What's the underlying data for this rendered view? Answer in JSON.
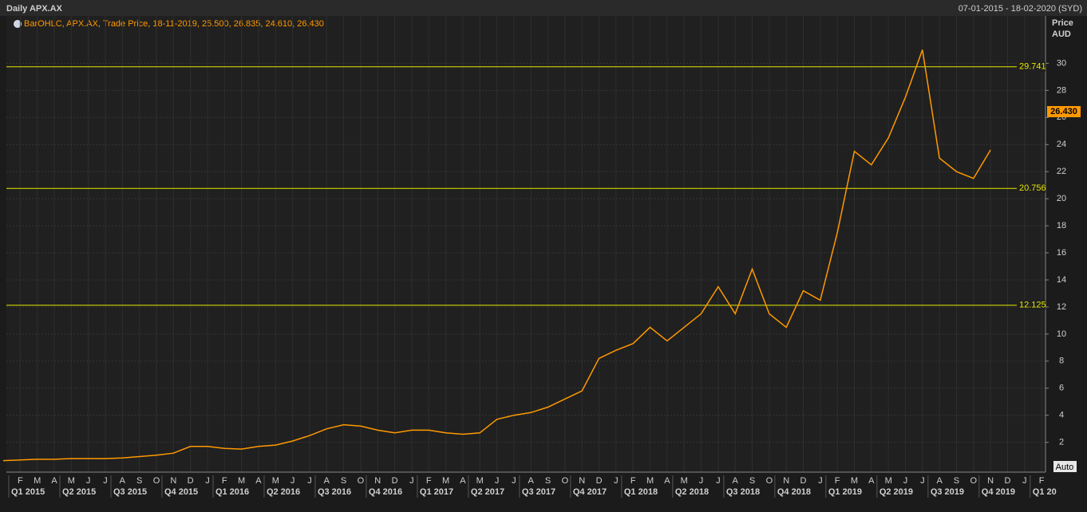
{
  "chart_data": {
    "type": "line",
    "title": "Daily APX.AX",
    "date_range": "07-01-2015 - 18-02-2020 (SYD)",
    "legend_text": "BarOHLC, APX.AX, Trade Price, 18-11-2019, 25.500, 26.835, 24.610, 26.430",
    "y_axis_title": "Price",
    "y_axis_unit": "AUD",
    "auto_button": "Auto",
    "categories": [
      null,
      "F",
      "M",
      "A",
      "M",
      "J",
      "J",
      "A",
      "S",
      "O",
      "N",
      "D",
      "J",
      "F",
      "M",
      "A",
      "M",
      "J",
      "J",
      "A",
      "S",
      "O",
      "N",
      "D",
      "J",
      "F",
      "M",
      "A",
      "M",
      "J",
      "J",
      "A",
      "S",
      "O",
      "N",
      "D",
      "J",
      "F",
      "M",
      "A",
      "M",
      "J",
      "J",
      "A",
      "S",
      "O",
      "N",
      "D",
      "J",
      "F",
      "M",
      "A",
      "M",
      "J",
      "J",
      "A",
      "S",
      "O",
      "N",
      "D",
      "J",
      "F"
    ],
    "quarters": [
      "Q1 2015",
      "Q2 2015",
      "Q3 2015",
      "Q4 2015",
      "Q1 2016",
      "Q2 2016",
      "Q3 2016",
      "Q4 2016",
      "Q1 2017",
      "Q2 2017",
      "Q3 2017",
      "Q4 2017",
      "Q1 2018",
      "Q2 2018",
      "Q3 2018",
      "Q4 2018",
      "Q1 2019",
      "Q2 2019",
      "Q3 2019",
      "Q4 2019",
      "Q1 20"
    ],
    "series": [
      {
        "name": "APX.AX",
        "color": "#ff9900",
        "values": [
          0.65,
          0.7,
          0.75,
          0.75,
          0.8,
          0.8,
          0.8,
          0.85,
          0.95,
          1.05,
          1.2,
          1.7,
          1.7,
          1.55,
          1.5,
          1.7,
          1.8,
          2.1,
          2.5,
          3.0,
          3.3,
          3.2,
          2.9,
          2.7,
          2.9,
          2.9,
          2.7,
          2.6,
          2.7,
          3.7,
          4.0,
          4.2,
          4.6,
          5.2,
          5.8,
          8.2,
          8.8,
          9.3,
          10.5,
          9.5,
          10.5,
          11.5,
          13.5,
          11.5,
          14.8,
          11.5,
          10.5,
          13.2,
          12.5,
          17.5,
          23.5,
          22.5,
          24.5,
          27.5,
          31,
          23,
          22,
          21.5,
          23.6,
          null,
          null,
          null
        ]
      }
    ],
    "ylim": [
      -0.2,
      33.5
    ],
    "yticks": [
      2,
      4,
      6,
      8,
      10,
      12,
      14,
      16,
      18,
      20,
      22,
      24,
      26,
      28,
      30
    ],
    "hlines": [
      {
        "value": 29.741,
        "label": "29.741"
      },
      {
        "value": 20.756,
        "label": "20.756"
      },
      {
        "value": 12.125,
        "label": "12.125"
      }
    ],
    "last_price": {
      "value": 26.43,
      "label": "26.430"
    },
    "grid": true
  }
}
